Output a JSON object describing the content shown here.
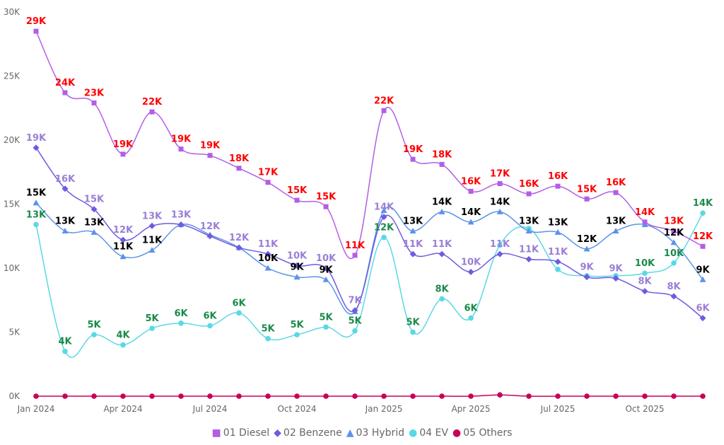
{
  "chart_data": {
    "type": "line",
    "title": "",
    "xlabel": "",
    "ylabel": "",
    "ylim": [
      0,
      30000
    ],
    "y_ticks": [
      "0K",
      "5K",
      "10K",
      "15K",
      "20K",
      "25K",
      "30K"
    ],
    "x_ticks": [
      "Jan 2024",
      "Apr 2024",
      "Jul 2024",
      "Oct 2024",
      "Jan 2025",
      "Apr 2025",
      "Jul 2025",
      "Oct 2025"
    ],
    "x": [
      "2024-01",
      "2024-02",
      "2024-03",
      "2024-04",
      "2024-05",
      "2024-06",
      "2024-07",
      "2024-08",
      "2024-09",
      "2024-10",
      "2024-11",
      "2024-12",
      "2025-01",
      "2025-02",
      "2025-03",
      "2025-04",
      "2025-05",
      "2025-06",
      "2025-07",
      "2025-08",
      "2025-09",
      "2025-10",
      "2025-11",
      "2025-12"
    ],
    "legend_position": "bottom",
    "grid": false,
    "series": [
      {
        "name": "01 Diesel",
        "color": "#B35EE6",
        "label_color": "#FF0000",
        "marker": "square",
        "values": [
          28500,
          23700,
          22900,
          18900,
          22200,
          19300,
          18800,
          17800,
          16700,
          15300,
          14800,
          11000,
          22300,
          18500,
          18100,
          16000,
          16600,
          15800,
          16400,
          15400,
          15900,
          13600,
          12900,
          11700
        ],
        "labels": [
          "29K",
          "24K",
          "23K",
          "19K",
          "22K",
          "19K",
          "19K",
          "18K",
          "17K",
          "15K",
          "15K",
          "11K",
          "22K",
          "19K",
          "18K",
          "16K",
          "17K",
          "16K",
          "16K",
          "15K",
          "16K",
          "14K",
          "13K",
          "12K"
        ]
      },
      {
        "name": "02 Benzene",
        "color": "#6F5BE0",
        "label_color": "#9A7FD6",
        "marker": "diamond",
        "values": [
          19400,
          16200,
          14600,
          12200,
          13300,
          13400,
          12500,
          11600,
          11100,
          10200,
          10000,
          6700,
          14000,
          11100,
          11100,
          9700,
          11100,
          10700,
          10500,
          9300,
          9200,
          8200,
          7800,
          6100
        ],
        "labels": [
          "19K",
          "16K",
          "15K",
          "12K",
          "13K",
          "13K",
          "12K",
          "12K",
          "11K",
          "10K",
          "10K",
          "7K",
          "14K",
          "11K",
          "11K",
          "10K",
          "11K",
          "11K",
          "11K",
          "9K",
          "9K",
          "8K",
          "8K",
          "6K"
        ]
      },
      {
        "name": "03 Hybrid",
        "color": "#5B93E8",
        "label_color": "#000000",
        "marker": "triangle",
        "values": [
          15100,
          12900,
          12800,
          10900,
          11400,
          13400,
          12600,
          11600,
          10000,
          9300,
          9100,
          6600,
          14500,
          12900,
          14400,
          13600,
          14400,
          12900,
          12800,
          11500,
          12900,
          13400,
          12000,
          9100
        ],
        "labels": [
          "15K",
          "13K",
          "13K",
          "11K",
          "11K",
          null,
          null,
          null,
          "10K",
          "9K",
          "9K",
          null,
          null,
          "13K",
          "14K",
          "14K",
          "14K",
          "13K",
          "13K",
          "12K",
          "13K",
          null,
          "12K",
          "9K"
        ]
      },
      {
        "name": "04 EV",
        "color": "#5AD8E6",
        "label_color": "#1A8A4A",
        "marker": "circle",
        "values": [
          13400,
          3500,
          4800,
          4000,
          5300,
          5700,
          5500,
          6500,
          4500,
          4800,
          5400,
          5100,
          12400,
          5000,
          7600,
          6100,
          11800,
          13100,
          9900,
          9400,
          9400,
          9600,
          10400,
          14300
        ],
        "labels": [
          "13K",
          "4K",
          "5K",
          "4K",
          "5K",
          "6K",
          "6K",
          "6K",
          "5K",
          "5K",
          "5K",
          "5K",
          "12K",
          "5K",
          "8K",
          "6K",
          null,
          null,
          null,
          null,
          null,
          "10K",
          "10K",
          "14K"
        ]
      },
      {
        "name": "05 Others",
        "color": "#C8005A",
        "label_color": "#C8005A",
        "marker": "circle",
        "values": [
          0,
          0,
          0,
          0,
          0,
          0,
          0,
          0,
          0,
          0,
          0,
          0,
          0,
          0,
          0,
          0,
          100,
          0,
          0,
          0,
          0,
          0,
          0,
          0
        ],
        "labels": []
      }
    ]
  }
}
